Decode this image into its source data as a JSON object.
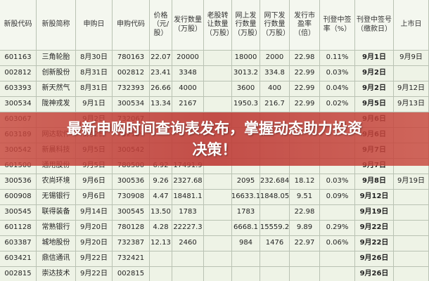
{
  "table": {
    "headers": [
      "新股代码",
      "新股简称",
      "申购日",
      "申购代码",
      "价格（元/股）",
      "发行数量（万股）",
      "老股转让数量（万股）",
      "网上发行数量（万股）",
      "网下发行数量（万股）",
      "发行市盈率（倍）",
      "刊登中签率（%）",
      "刊登中签号（缴款日）",
      "上市日"
    ],
    "rows": [
      [
        "601163",
        "三角轮胎",
        "8月30日",
        "780163",
        "22.07",
        "20000",
        null,
        "18000",
        "2000",
        "22.98",
        "0.11%",
        "9月1日",
        "9月9日"
      ],
      [
        "002812",
        "创新股份",
        "8月31日",
        "002812",
        "23.41",
        "3348",
        null,
        "3013.2",
        "334.8",
        "22.99",
        "0.03%",
        "9月2日",
        null
      ],
      [
        "603393",
        "新天然气",
        "8月31日",
        "732393",
        "26.66",
        "4000",
        null,
        "3600",
        "400",
        "22.99",
        "0.04%",
        "9月2日",
        "9月12日"
      ],
      [
        "300534",
        "陇神戎发",
        "9月1日",
        "300534",
        "13.34",
        "2167",
        null,
        "1950.3",
        "216.7",
        "22.99",
        "0.02%",
        "9月5日",
        "9月13日"
      ],
      [
        "603067",
        null,
        "9月2日",
        "732067",
        null,
        null,
        null,
        null,
        null,
        null,
        null,
        "9月6日",
        null
      ],
      [
        "603189",
        "网达软件",
        "9月2日",
        "732189",
        null,
        null,
        null,
        null,
        null,
        null,
        null,
        "9月6日",
        null
      ],
      [
        "300542",
        "新晨科技",
        "9月5日",
        "300542",
        null,
        null,
        null,
        null,
        null,
        null,
        null,
        "9月7日",
        null
      ],
      [
        "601500",
        "通用股份",
        "9月5日",
        "780500",
        "6.92",
        "17491.9",
        null,
        null,
        null,
        null,
        null,
        "9月7日",
        null
      ],
      [
        "300536",
        "农尚环境",
        "9月6日",
        "300536",
        "9.26",
        "2327.68",
        null,
        "2095",
        "232.684",
        "18.12",
        "0.03%",
        "9月8日",
        "9月19日"
      ],
      [
        "600908",
        "无锡银行",
        "9月6日",
        "730908",
        "4.47",
        "18481.1",
        null,
        "16633.1",
        "1848.05",
        "9.51",
        "0.09%",
        "9月12日",
        null
      ],
      [
        "300545",
        "联得装备",
        "9月14日",
        "300545",
        "13.50",
        "1783",
        null,
        "1783",
        null,
        "22.98",
        null,
        "9月19日",
        null
      ],
      [
        "601128",
        "常熟银行",
        "9月20日",
        "780128",
        "4.28",
        "22227.3",
        null,
        "6668.1",
        "15559.2",
        "9.89",
        "0.29%",
        "9月22日",
        null
      ],
      [
        "603387",
        "城地股份",
        "9月20日",
        "732387",
        "12.13",
        "2460",
        null,
        "984",
        "1476",
        "22.97",
        "0.06%",
        "9月22日",
        null
      ],
      [
        "603421",
        "鼎信通讯",
        "9月22日",
        "732421",
        null,
        null,
        null,
        null,
        null,
        null,
        null,
        "9月26日",
        null
      ],
      [
        "002815",
        "崇达技术",
        "9月22日",
        "002815",
        null,
        null,
        null,
        null,
        null,
        null,
        null,
        "9月26日",
        null
      ]
    ]
  },
  "banner": {
    "text": "最新申购时间查询表发布，掌握动态助力投资决策！"
  }
}
